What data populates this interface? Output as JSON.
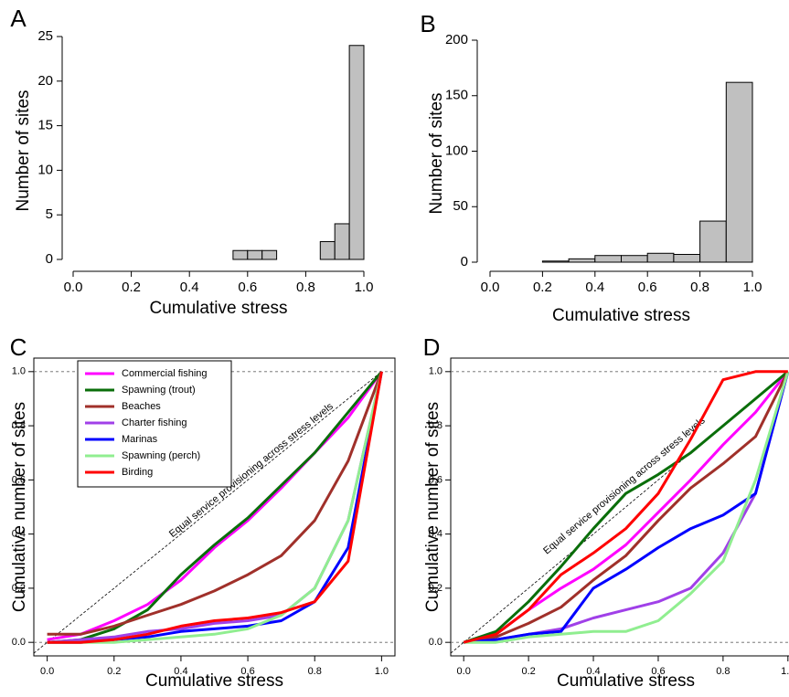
{
  "chart_data": [
    {
      "type": "histogram",
      "panel": "A",
      "xlabel": "Cumulative stress",
      "ylabel": "Number of sites",
      "bins": [
        0.55,
        0.6,
        0.65,
        0.7,
        0.75,
        0.8,
        0.85,
        0.9,
        0.95,
        1.0
      ],
      "values": [
        1,
        1,
        1,
        0,
        0,
        0,
        2,
        4,
        24
      ],
      "color": "#c0c0c0",
      "xlim": [
        0,
        1
      ],
      "ylim": [
        0,
        25
      ],
      "xticks": [
        {
          "value": 0,
          "label": "0.0"
        },
        {
          "value": 0.2,
          "label": "0.2"
        },
        {
          "value": 0.4,
          "label": "0.4"
        },
        {
          "value": 0.6,
          "label": "0.6"
        },
        {
          "value": 0.8,
          "label": "0.8"
        },
        {
          "value": 1,
          "label": "1.0"
        }
      ],
      "yticks": [
        0,
        5,
        10,
        15,
        20,
        25
      ]
    },
    {
      "type": "histogram",
      "panel": "B",
      "xlabel": "Cumulative stress",
      "ylabel": "Number of sites",
      "bins": [
        0.2,
        0.3,
        0.4,
        0.5,
        0.6,
        0.7,
        0.8,
        0.9,
        1.0
      ],
      "values": [
        1,
        3,
        6,
        6,
        8,
        7,
        37,
        162
      ],
      "color": "#c0c0c0",
      "xlim": [
        0,
        1
      ],
      "ylim": [
        0,
        200
      ],
      "xticks": [
        {
          "value": 0,
          "label": "0.0"
        },
        {
          "value": 0.2,
          "label": "0.2"
        },
        {
          "value": 0.4,
          "label": "0.4"
        },
        {
          "value": 0.6,
          "label": "0.6"
        },
        {
          "value": 0.8,
          "label": "0.8"
        },
        {
          "value": 1,
          "label": "1.0"
        }
      ],
      "yticks": [
        0,
        50,
        100,
        150,
        200
      ]
    },
    {
      "type": "line",
      "panel": "C",
      "xlabel": "Cumulative stress",
      "ylabel": "Cumulative  number of sites",
      "annotation": "Equal service provisioning across stress levels",
      "legend": "top-left",
      "x": [
        0,
        0.1,
        0.2,
        0.3,
        0.4,
        0.5,
        0.6,
        0.7,
        0.8,
        0.9,
        1.0
      ],
      "series": [
        {
          "name": "Commercial fishing",
          "color": "#ff00ff",
          "values": [
            0.01,
            0.03,
            0.08,
            0.14,
            0.23,
            0.35,
            0.45,
            0.57,
            0.7,
            0.83,
            1.0
          ]
        },
        {
          "name": "Spawning (trout)",
          "color": "#0a6e0a",
          "values": [
            0.0,
            0.01,
            0.05,
            0.12,
            0.25,
            0.36,
            0.46,
            0.58,
            0.7,
            0.85,
            1.0
          ]
        },
        {
          "name": "Beaches",
          "color": "#a0302a",
          "values": [
            0.03,
            0.03,
            0.06,
            0.1,
            0.14,
            0.19,
            0.25,
            0.32,
            0.45,
            0.67,
            1.0
          ]
        },
        {
          "name": "Charter fishing",
          "color": "#a040e8",
          "values": [
            0.0,
            0.01,
            0.02,
            0.04,
            0.05,
            0.07,
            0.08,
            0.1,
            0.2,
            0.45,
            1.0
          ]
        },
        {
          "name": "Marinas",
          "color": "#0000ff",
          "values": [
            0.0,
            0.0,
            0.01,
            0.02,
            0.04,
            0.05,
            0.06,
            0.08,
            0.15,
            0.35,
            1.0
          ]
        },
        {
          "name": "Spawning (perch)",
          "color": "#90ee90",
          "values": [
            0.0,
            0.0,
            0.0,
            0.01,
            0.02,
            0.03,
            0.05,
            0.1,
            0.2,
            0.45,
            1.0
          ]
        },
        {
          "name": "Birding",
          "color": "#ff0000",
          "values": [
            0.0,
            0.0,
            0.01,
            0.03,
            0.06,
            0.08,
            0.09,
            0.11,
            0.15,
            0.3,
            1.0
          ]
        }
      ],
      "xlim": [
        -0.04,
        1.04
      ],
      "ylim": [
        -0.05,
        1.05
      ],
      "xticks": [
        {
          "value": 0,
          "label": "0.0"
        },
        {
          "value": 0.2,
          "label": "0.2"
        },
        {
          "value": 0.4,
          "label": "0.4"
        },
        {
          "value": 0.6,
          "label": "0.6"
        },
        {
          "value": 0.8,
          "label": "0.8"
        },
        {
          "value": 1,
          "label": "1.0"
        }
      ],
      "yticks": [
        {
          "value": 0,
          "label": "0.0"
        },
        {
          "value": 0.2,
          "label": "0.2"
        },
        {
          "value": 0.4,
          "label": "0.4"
        },
        {
          "value": 0.6,
          "label": "0.6"
        },
        {
          "value": 0.8,
          "label": "0.8"
        },
        {
          "value": 1,
          "label": "1.0"
        }
      ]
    },
    {
      "type": "line",
      "panel": "D",
      "xlabel": "Cumulative stress",
      "ylabel": "Cumulative  number of sites",
      "annotation": "Equal service provisioning across stress levels",
      "x": [
        0,
        0.1,
        0.2,
        0.3,
        0.4,
        0.5,
        0.6,
        0.7,
        0.8,
        0.9,
        1.0
      ],
      "series": [
        {
          "color": "#ff00ff",
          "values": [
            0.0,
            0.03,
            0.12,
            0.2,
            0.27,
            0.36,
            0.48,
            0.6,
            0.73,
            0.85,
            1.0
          ]
        },
        {
          "color": "#0a6e0a",
          "values": [
            0.0,
            0.04,
            0.15,
            0.28,
            0.42,
            0.55,
            0.62,
            0.7,
            0.8,
            0.9,
            1.0
          ]
        },
        {
          "color": "#a0302a",
          "values": [
            0.0,
            0.02,
            0.07,
            0.13,
            0.23,
            0.32,
            0.45,
            0.57,
            0.66,
            0.76,
            1.0
          ]
        },
        {
          "color": "#a040e8",
          "values": [
            0.0,
            0.01,
            0.03,
            0.05,
            0.09,
            0.12,
            0.15,
            0.2,
            0.33,
            0.55,
            1.0
          ]
        },
        {
          "color": "#0000ff",
          "values": [
            0.0,
            0.01,
            0.03,
            0.04,
            0.2,
            0.27,
            0.35,
            0.42,
            0.47,
            0.55,
            1.0
          ]
        },
        {
          "color": "#90ee90",
          "values": [
            0.0,
            0.0,
            0.02,
            0.03,
            0.04,
            0.04,
            0.08,
            0.18,
            0.3,
            0.6,
            1.0
          ]
        },
        {
          "color": "#ff0000",
          "values": [
            0.0,
            0.03,
            0.12,
            0.25,
            0.33,
            0.42,
            0.55,
            0.75,
            0.97,
            1.0,
            1.0
          ]
        }
      ],
      "xlim": [
        -0.04,
        1.04
      ],
      "ylim": [
        -0.05,
        1.05
      ],
      "xticks": [
        {
          "value": 0,
          "label": "0.0"
        },
        {
          "value": 0.2,
          "label": "0.2"
        },
        {
          "value": 0.4,
          "label": "0.4"
        },
        {
          "value": 0.6,
          "label": "0.6"
        },
        {
          "value": 0.8,
          "label": "0.8"
        },
        {
          "value": 1,
          "label": "1.0"
        }
      ],
      "yticks": [
        {
          "value": 0,
          "label": "0.0"
        },
        {
          "value": 0.2,
          "label": "0.2"
        },
        {
          "value": 0.4,
          "label": "0.4"
        },
        {
          "value": 0.6,
          "label": "0.6"
        },
        {
          "value": 0.8,
          "label": "0.8"
        },
        {
          "value": 1,
          "label": "1.0"
        }
      ]
    }
  ]
}
